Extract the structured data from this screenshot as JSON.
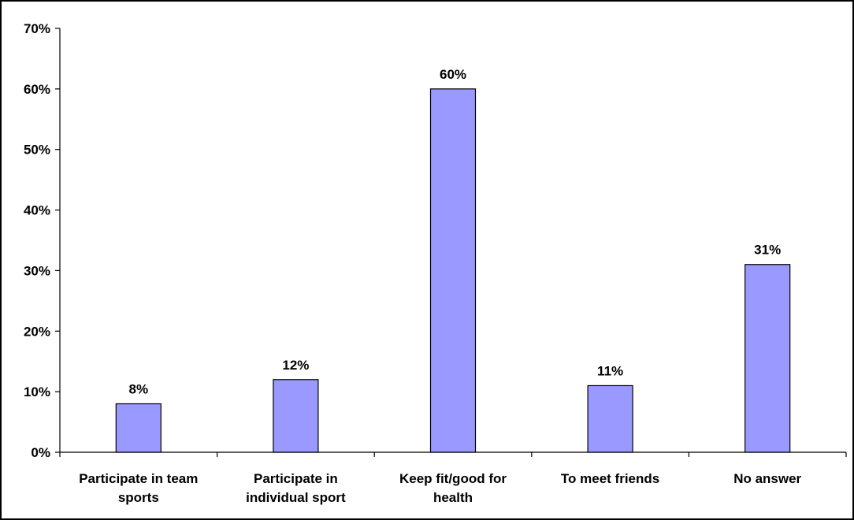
{
  "chart_data": {
    "type": "bar",
    "title": "",
    "xlabel": "",
    "ylabel": "",
    "categories": [
      [
        "Participate in team",
        "sports"
      ],
      [
        "Participate in",
        "individual sport"
      ],
      [
        "Keep fit/good for",
        "health"
      ],
      [
        "To meet friends"
      ],
      [
        "No answer"
      ]
    ],
    "values": [
      8,
      12,
      60,
      11,
      31
    ],
    "data_labels": [
      "8%",
      "12%",
      "60%",
      "11%",
      "31%"
    ],
    "ylim": [
      0,
      70
    ],
    "yticks": [
      0,
      10,
      20,
      30,
      40,
      50,
      60,
      70
    ],
    "ytick_labels": [
      "0%",
      "10%",
      "20%",
      "30%",
      "40%",
      "50%",
      "60%",
      "70%"
    ],
    "grid": false,
    "legend": "none",
    "colors": {
      "bar_fill": "#9999FF",
      "bar_stroke": "#000000",
      "axis": "#000000"
    }
  }
}
